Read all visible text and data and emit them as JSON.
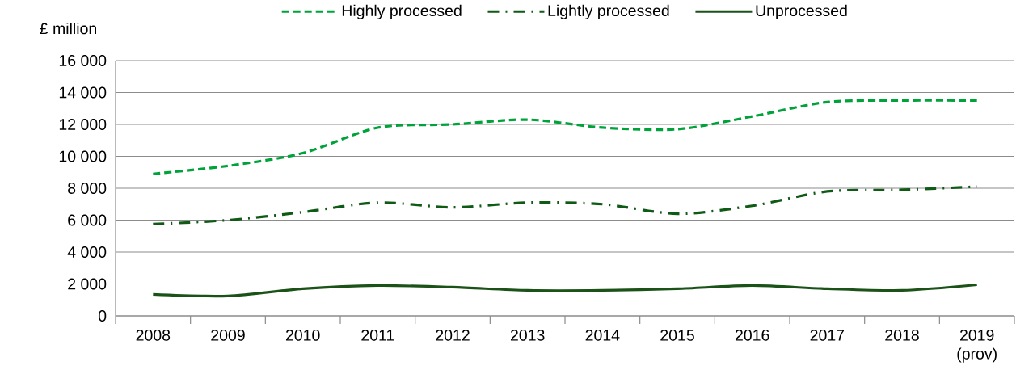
{
  "chart_data": {
    "type": "line",
    "ylabel": "£ million",
    "categories": [
      "2008",
      "2009",
      "2010",
      "2011",
      "2012",
      "2013",
      "2014",
      "2015",
      "2016",
      "2017",
      "2018",
      "2019 (prov)"
    ],
    "series": [
      {
        "name": "Highly processed",
        "color": "#00a33a",
        "line_style": "dashed",
        "values": [
          8900,
          9400,
          10200,
          11800,
          12000,
          12300,
          11800,
          11700,
          12500,
          13400,
          13500,
          13500
        ]
      },
      {
        "name": "Lightly processed",
        "color": "#0f5a14",
        "line_style": "dashdot",
        "values": [
          5750,
          6000,
          6500,
          7100,
          6800,
          7100,
          7000,
          6400,
          6900,
          7800,
          7900,
          8100
        ]
      },
      {
        "name": "Unprocessed",
        "color": "#1a5218",
        "line_style": "solid",
        "values": [
          1350,
          1250,
          1700,
          1900,
          1800,
          1600,
          1600,
          1700,
          1900,
          1700,
          1600,
          1950
        ]
      }
    ],
    "ylim": [
      0,
      16000
    ],
    "yticks": [
      {
        "value": 0,
        "label": "0"
      },
      {
        "value": 2000,
        "label": "2 000"
      },
      {
        "value": 4000,
        "label": "4 000"
      },
      {
        "value": 6000,
        "label": "6 000"
      },
      {
        "value": 8000,
        "label": "8 000"
      },
      {
        "value": 10000,
        "label": "10 000"
      },
      {
        "value": 12000,
        "label": "12 000"
      },
      {
        "value": 14000,
        "label": "14 000"
      },
      {
        "value": 16000,
        "label": "16 000"
      }
    ],
    "grid": "y",
    "legend": "top"
  }
}
